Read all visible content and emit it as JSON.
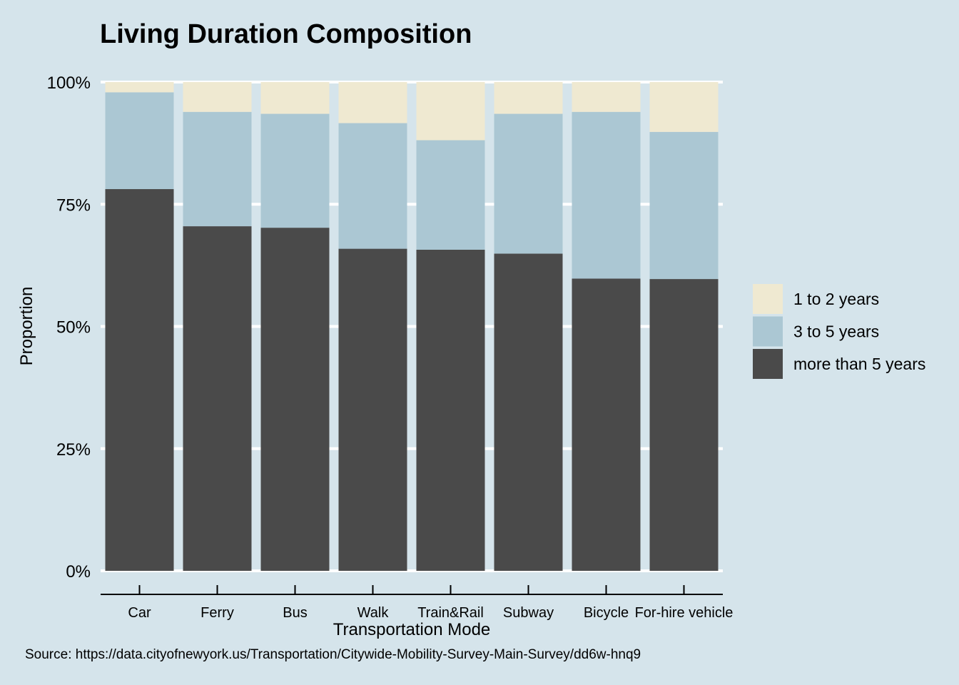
{
  "chart_data": {
    "type": "bar",
    "stacked": true,
    "percent": true,
    "title": "Living Duration Composition",
    "xlabel": "Transportation Mode",
    "ylabel": "Proportion",
    "source": "Source: https://data.cityofnewyork.us/Transportation/Citywide-Mobility-Survey-Main-Survey/dd6w-hnq9",
    "categories": [
      "Car",
      "Ferry",
      "Bus",
      "Walk",
      "Train&Rail",
      "Subway",
      "Bicycle",
      "For-hire vehicle"
    ],
    "ylim": [
      0,
      1
    ],
    "yticks": [
      0,
      0.25,
      0.5,
      0.75,
      1
    ],
    "ytick_labels": [
      "0%",
      "25%",
      "50%",
      "75%",
      "100%"
    ],
    "grid": true,
    "legend_position": "right",
    "series": [
      {
        "name": "more than 5 years",
        "color": "#4a4a4a",
        "values": [
          0.781,
          0.705,
          0.702,
          0.659,
          0.657,
          0.649,
          0.598,
          0.597
        ]
      },
      {
        "name": "3 to 5 years",
        "color": "#abc7d3",
        "values": [
          0.198,
          0.234,
          0.233,
          0.257,
          0.224,
          0.286,
          0.341,
          0.301
        ]
      },
      {
        "name": "1 to 2 years",
        "color": "#efe9d1",
        "values": [
          0.021,
          0.061,
          0.065,
          0.084,
          0.119,
          0.065,
          0.061,
          0.102
        ]
      }
    ],
    "legend_order": [
      "1 to 2 years",
      "3 to 5 years",
      "more than 5 years"
    ]
  }
}
